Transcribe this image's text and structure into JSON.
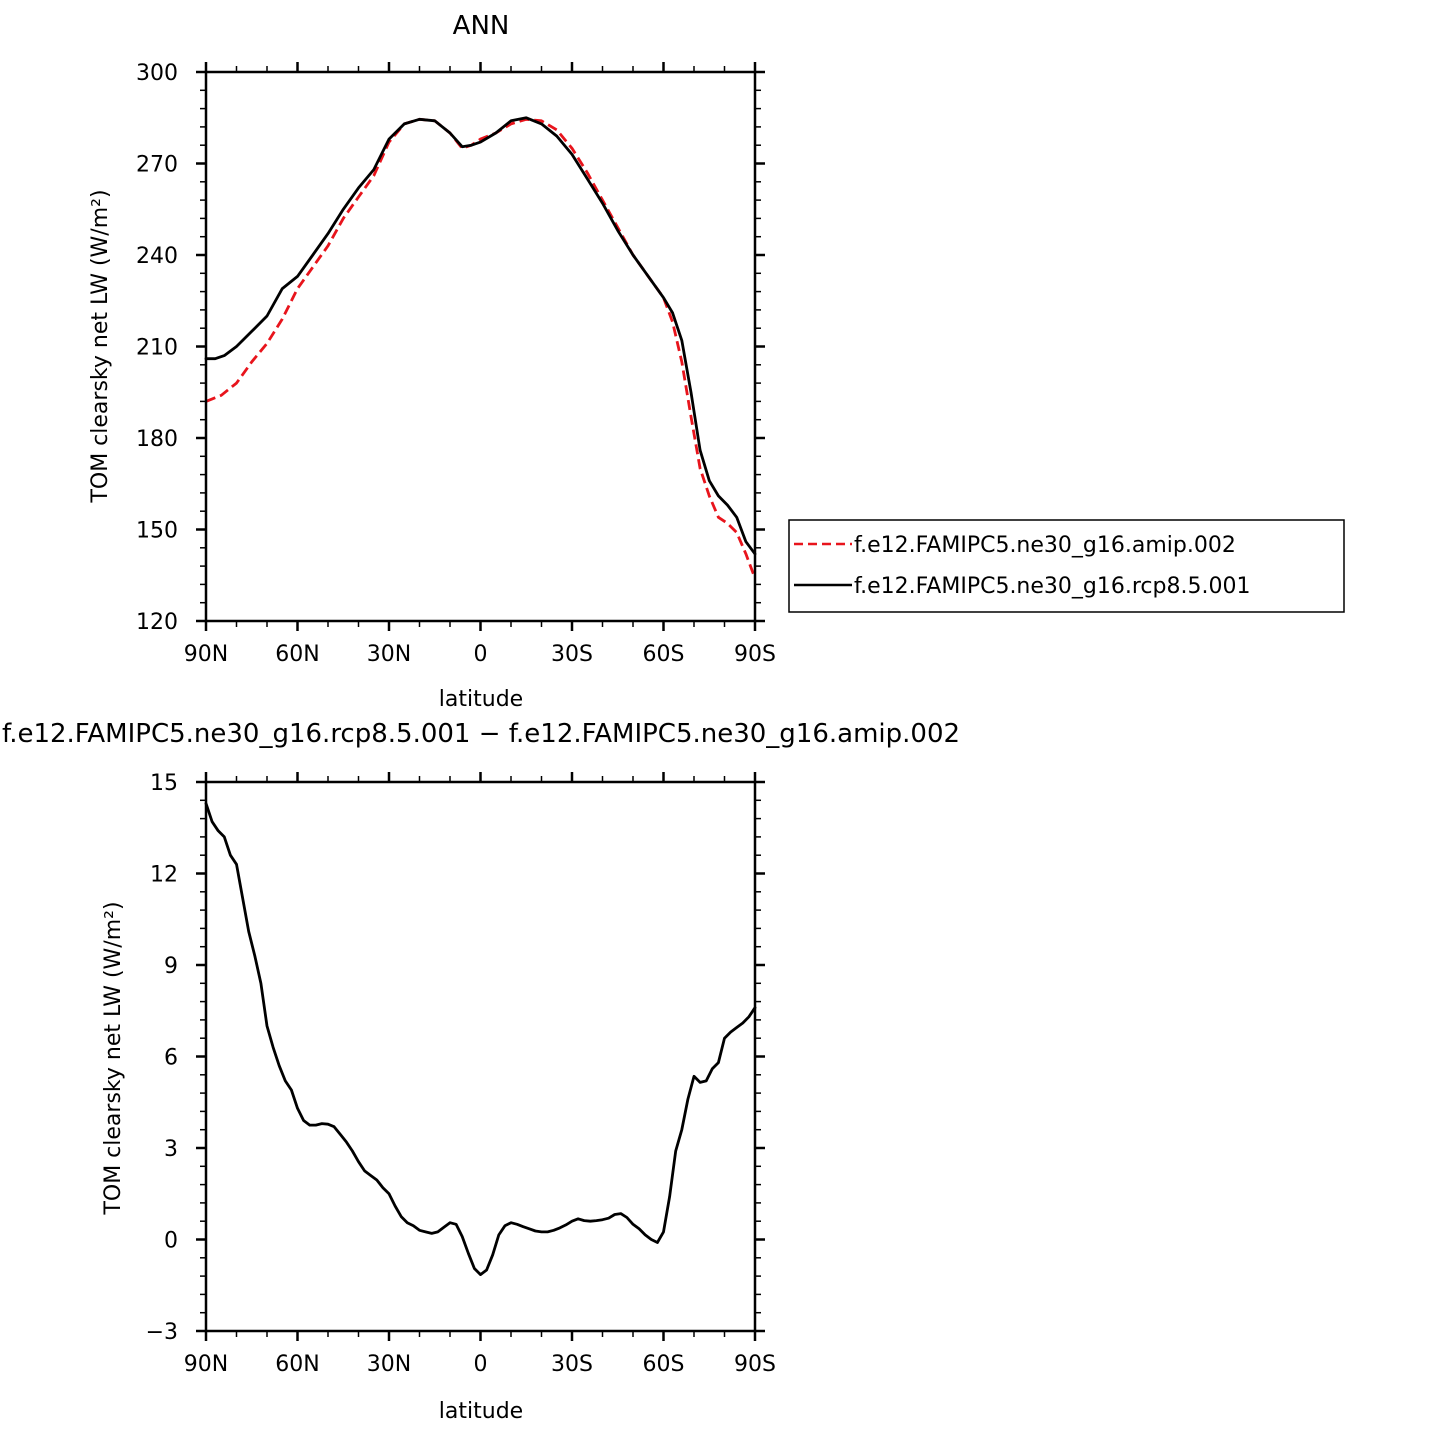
{
  "chart_data": [
    {
      "type": "line",
      "title": "ANN",
      "xlabel": "latitude",
      "ylabel": "TOM clearsky net LW (W/m²)",
      "xlim": [
        90,
        -90
      ],
      "ylim": [
        120,
        300
      ],
      "x_ticks": [
        {
          "value": 90,
          "label": "90N"
        },
        {
          "value": 60,
          "label": "60N"
        },
        {
          "value": 30,
          "label": "30N"
        },
        {
          "value": 0,
          "label": "0"
        },
        {
          "value": -30,
          "label": "30S"
        },
        {
          "value": -60,
          "label": "60S"
        },
        {
          "value": -90,
          "label": "90S"
        }
      ],
      "y_ticks": [
        {
          "value": 120,
          "label": "120"
        },
        {
          "value": 150,
          "label": "150"
        },
        {
          "value": 180,
          "label": "180"
        },
        {
          "value": 210,
          "label": "210"
        },
        {
          "value": 240,
          "label": "240"
        },
        {
          "value": 270,
          "label": "270"
        },
        {
          "value": 300,
          "label": "300"
        }
      ],
      "legend_position": "right",
      "series": [
        {
          "name": "f.e12.FAMIPC5.ne30_g16.amip.002",
          "color": "#e8141c",
          "dash": "dashed",
          "x": [
            90,
            85,
            80,
            75,
            70,
            65,
            60,
            55,
            50,
            45,
            40,
            35,
            30,
            25,
            20,
            15,
            10,
            6,
            3,
            0,
            -5,
            -10,
            -15,
            -20,
            -25,
            -30,
            -35,
            -40,
            -45,
            -50,
            -55,
            -60,
            -63,
            -66,
            -69,
            -72,
            -75,
            -78,
            -81,
            -84,
            -87,
            -90
          ],
          "y": [
            192,
            194,
            198,
            205,
            211,
            219,
            229,
            236,
            243,
            252,
            259,
            266,
            277,
            283,
            284.5,
            284,
            280,
            275,
            276,
            278,
            280,
            283,
            284.5,
            284,
            281,
            275,
            267,
            258,
            249,
            240,
            233,
            226,
            218,
            205,
            187,
            170,
            161,
            154,
            152,
            149,
            142,
            134
          ]
        },
        {
          "name": "f.e12.FAMIPC5.ne30_g16.rcp8.5.001",
          "color": "#000000",
          "dash": "solid",
          "x": [
            90,
            87,
            84,
            80,
            75,
            70,
            65,
            60,
            55,
            50,
            45,
            40,
            35,
            30,
            25,
            20,
            15,
            10,
            6,
            3,
            0,
            -5,
            -10,
            -15,
            -20,
            -25,
            -30,
            -35,
            -40,
            -45,
            -50,
            -55,
            -60,
            -63,
            -66,
            -69,
            -72,
            -75,
            -78,
            -81,
            -84,
            -87,
            -90
          ],
          "y": [
            206,
            206,
            207,
            210,
            215,
            220,
            229,
            233,
            240,
            247,
            255,
            262,
            268,
            278,
            283,
            284.5,
            284,
            280,
            275.5,
            276,
            277,
            280,
            284,
            285,
            283,
            279,
            273,
            265,
            257,
            248,
            240,
            233,
            226,
            221,
            212,
            195,
            176,
            166,
            161,
            158,
            154,
            146,
            142
          ]
        }
      ]
    },
    {
      "type": "line",
      "title": "f.e12.FAMIPC5.ne30_g16.rcp8.5.001 − f.e12.FAMIPC5.ne30_g16.amip.002",
      "xlabel": "latitude",
      "ylabel": "TOM clearsky net LW (W/m²)",
      "xlim": [
        90,
        -90
      ],
      "ylim": [
        -3,
        15
      ],
      "x_ticks": [
        {
          "value": 90,
          "label": "90N"
        },
        {
          "value": 60,
          "label": "60N"
        },
        {
          "value": 30,
          "label": "30N"
        },
        {
          "value": 0,
          "label": "0"
        },
        {
          "value": -30,
          "label": "30S"
        },
        {
          "value": -60,
          "label": "60S"
        },
        {
          "value": -90,
          "label": "90S"
        }
      ],
      "y_ticks": [
        {
          "value": -3,
          "label": "−3"
        },
        {
          "value": 0,
          "label": "0"
        },
        {
          "value": 3,
          "label": "3"
        },
        {
          "value": 6,
          "label": "6"
        },
        {
          "value": 9,
          "label": "9"
        },
        {
          "value": 12,
          "label": "12"
        },
        {
          "value": 15,
          "label": "15"
        }
      ],
      "series": [
        {
          "color": "#000000",
          "dash": "solid",
          "x": [
            90,
            88,
            86,
            84,
            82,
            80,
            78,
            76,
            74,
            72,
            70,
            68,
            66,
            64,
            62,
            60,
            58,
            56,
            54,
            52,
            50,
            48,
            46,
            44,
            42,
            40,
            38,
            36,
            34,
            32,
            30,
            28,
            26,
            24,
            22,
            20,
            18,
            16,
            14,
            12,
            10,
            8,
            6,
            4,
            2,
            0,
            -2,
            -4,
            -6,
            -8,
            -10,
            -12,
            -14,
            -16,
            -18,
            -20,
            -22,
            -24,
            -26,
            -28,
            -30,
            -32,
            -34,
            -36,
            -38,
            -40,
            -42,
            -44,
            -46,
            -48,
            -50,
            -52,
            -54,
            -56,
            -58,
            -60,
            -62,
            -64,
            -66,
            -68,
            -70,
            -72,
            -74,
            -76,
            -78,
            -80,
            -82,
            -84,
            -86,
            -88,
            -90
          ],
          "y": [
            14.3,
            13.7,
            13.4,
            13.2,
            12.6,
            12.3,
            11.2,
            10.1,
            9.3,
            8.4,
            7.0,
            6.3,
            5.7,
            5.2,
            4.9,
            4.3,
            3.9,
            3.75,
            3.75,
            3.8,
            3.78,
            3.7,
            3.45,
            3.2,
            2.9,
            2.55,
            2.25,
            2.1,
            1.95,
            1.7,
            1.5,
            1.1,
            0.75,
            0.55,
            0.45,
            0.3,
            0.25,
            0.2,
            0.25,
            0.4,
            0.55,
            0.5,
            0.1,
            -0.45,
            -0.95,
            -1.15,
            -1.0,
            -0.5,
            0.15,
            0.45,
            0.55,
            0.5,
            0.42,
            0.35,
            0.28,
            0.25,
            0.25,
            0.3,
            0.38,
            0.48,
            0.6,
            0.68,
            0.62,
            0.6,
            0.62,
            0.65,
            0.7,
            0.82,
            0.85,
            0.72,
            0.5,
            0.35,
            0.15,
            0.0,
            -0.1,
            0.25,
            1.4,
            2.9,
            3.6,
            4.6,
            5.35,
            5.15,
            5.2,
            5.6,
            5.8,
            6.6,
            6.8,
            6.95,
            7.1,
            7.3,
            7.6
          ]
        }
      ]
    }
  ]
}
